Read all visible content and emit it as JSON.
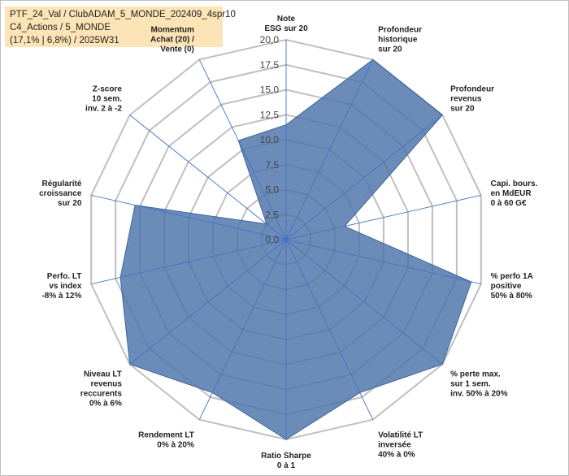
{
  "header": {
    "line1": "PTF_24_Val / ClubADAM_5_MONDE_202409_4spr10",
    "line2": "C4_Actions / 5_MONDE",
    "line3": "(17,1% | 6,8%) / 2025W31"
  },
  "chart_data": {
    "type": "radar",
    "series_color": "#4a73a8",
    "grid_color": "#bfbfbf",
    "spoke_color": "#4472c4",
    "rlim": [
      0,
      20
    ],
    "ticks": [
      "0,0",
      "2,5",
      "5,0",
      "7,5",
      "10,0",
      "12,5",
      "15,0",
      "17,5",
      "20,0"
    ],
    "tick_values": [
      0,
      2.5,
      5,
      7.5,
      10,
      12.5,
      15,
      17.5,
      20
    ],
    "axes": [
      {
        "label": [
          "Note",
          "ESG sur 20"
        ],
        "value": 11.5
      },
      {
        "label": [
          "Profondeur",
          "historique",
          "sur 20"
        ],
        "value": 20
      },
      {
        "label": [
          "Profondeur",
          "revenus",
          "sur 20"
        ],
        "value": 20
      },
      {
        "label": [
          "Capi. bours.",
          "en MdEUR",
          "0 à 60 G€"
        ],
        "value": 6
      },
      {
        "label": [
          "% perfo 1A",
          "positive",
          "50% à 80%"
        ],
        "value": 19
      },
      {
        "label": [
          "% perte max.",
          "sur 1 sem.",
          "inv. 50% à 20%"
        ],
        "value": 20
      },
      {
        "label": [
          "Volatilité LT",
          "inversée",
          "40% à 0%"
        ],
        "value": 17
      },
      {
        "label": [
          "Ratio Sharpe",
          "0 à 1"
        ],
        "value": 20
      },
      {
        "label": [
          "Rendement LT",
          "0% à 20%"
        ],
        "value": 17
      },
      {
        "label": [
          "Niveau LT",
          "revenus",
          "reccurents",
          "0% à 6%"
        ],
        "value": 20
      },
      {
        "label": [
          "Perfo. LT",
          "vs index",
          "-8% à 12%"
        ],
        "value": 17
      },
      {
        "label": [
          "Régularité",
          "croissance",
          "sur 20"
        ],
        "value": 15.5
      },
      {
        "label": [
          "Z-score",
          "10 sem.",
          "inv. 2 à -2"
        ],
        "value": 2.5
      },
      {
        "label": [
          "Momentum",
          "Achat (20) /",
          "Vente (0)"
        ],
        "value": 11
      }
    ]
  }
}
